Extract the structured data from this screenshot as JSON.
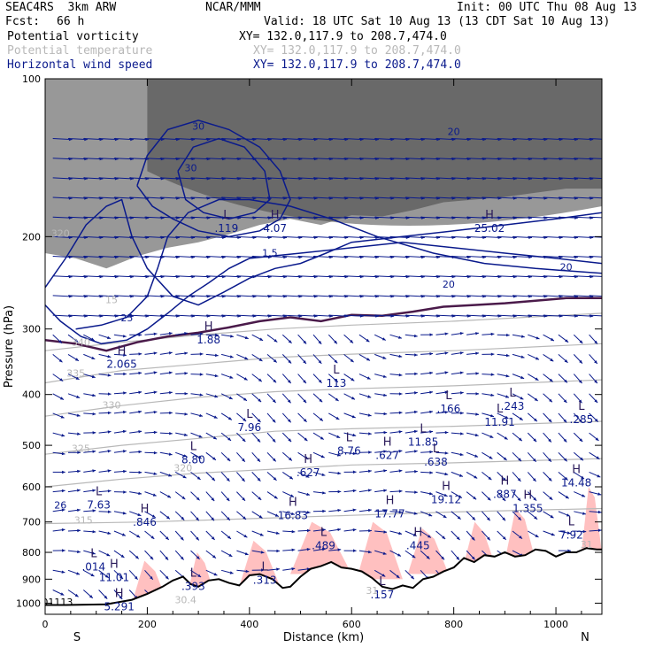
{
  "header": {
    "model": "SEAC4RS  3km ARW",
    "org": "NCAR/MMM",
    "init": "Init: 00 UTC Thu 08 Aug 13",
    "fcst_label": "Fcst:",
    "fcst_value": "66 h",
    "valid": "Valid: 18 UTC Sat 10 Aug 13 (13 CDT Sat 10 Aug 13)",
    "fields": [
      {
        "name": "Potential vorticity",
        "xy": "XY= 132.0,117.9 to 208.7,474.0",
        "color": "#000000"
      },
      {
        "name": "Potential temperature",
        "xy": "XY= 132.0,117.9 to 208.7,474.0",
        "color": "#b8b8b8"
      },
      {
        "name": "Horizontal wind speed",
        "xy": "XY= 132.0,117.9 to 208.7,474.0",
        "color": "#0a1a8c"
      }
    ]
  },
  "chart_data": {
    "type": "cross-section",
    "xlabel": "Distance (km)",
    "ylabel": "Pressure (hPa)",
    "xlim": [
      0,
      1090
    ],
    "ylim": [
      1050,
      100
    ],
    "y_scale": "log",
    "x_ticks": [
      0,
      200,
      400,
      600,
      800,
      1000
    ],
    "y_ticks": [
      100,
      200,
      300,
      400,
      500,
      600,
      700,
      800,
      900,
      1000
    ],
    "end_labels": {
      "left": "S",
      "right": "N"
    },
    "colors": {
      "terrain": "#000000",
      "pv_high": "#ffc0c0",
      "stratosphere": "#444444",
      "theta": "#b8b8b8",
      "wind": "#0a1a8c",
      "tropopause": "#4a1a4a"
    },
    "terrain_surface": [
      [
        0,
        1008
      ],
      [
        40,
        1008
      ],
      [
        120,
        1005
      ],
      [
        170,
        985
      ],
      [
        200,
        960
      ],
      [
        230,
        930
      ],
      [
        250,
        905
      ],
      [
        270,
        890
      ],
      [
        285,
        920
      ],
      [
        300,
        930
      ],
      [
        320,
        905
      ],
      [
        340,
        900
      ],
      [
        360,
        915
      ],
      [
        380,
        925
      ],
      [
        400,
        885
      ],
      [
        420,
        880
      ],
      [
        445,
        900
      ],
      [
        465,
        935
      ],
      [
        480,
        930
      ],
      [
        500,
        890
      ],
      [
        520,
        860
      ],
      [
        540,
        850
      ],
      [
        560,
        835
      ],
      [
        580,
        855
      ],
      [
        600,
        860
      ],
      [
        620,
        870
      ],
      [
        640,
        895
      ],
      [
        660,
        930
      ],
      [
        680,
        940
      ],
      [
        700,
        925
      ],
      [
        720,
        935
      ],
      [
        740,
        900
      ],
      [
        760,
        890
      ],
      [
        780,
        870
      ],
      [
        800,
        855
      ],
      [
        820,
        820
      ],
      [
        840,
        835
      ],
      [
        860,
        810
      ],
      [
        880,
        815
      ],
      [
        900,
        800
      ],
      [
        920,
        815
      ],
      [
        940,
        810
      ],
      [
        960,
        790
      ],
      [
        980,
        795
      ],
      [
        1000,
        815
      ],
      [
        1020,
        800
      ],
      [
        1040,
        800
      ],
      [
        1060,
        785
      ],
      [
        1080,
        790
      ],
      [
        1090,
        790
      ]
    ],
    "pv_high_regions": [
      {
        "x": [
          170,
          240
        ],
        "p": [
          1000,
          830
        ]
      },
      {
        "x": [
          280,
          330
        ],
        "p": [
          950,
          800
        ]
      },
      {
        "x": [
          380,
          460
        ],
        "p": [
          930,
          760
        ]
      },
      {
        "x": [
          480,
          600
        ],
        "p": [
          880,
          700
        ]
      },
      {
        "x": [
          610,
          700
        ],
        "p": [
          900,
          700
        ]
      },
      {
        "x": [
          710,
          790
        ],
        "p": [
          880,
          720
        ]
      },
      {
        "x": [
          820,
          880
        ],
        "p": [
          840,
          700
        ]
      },
      {
        "x": [
          900,
          960
        ],
        "p": [
          830,
          660
        ]
      },
      {
        "x": [
          1050,
          1090
        ],
        "p": [
          800,
          600
        ]
      }
    ],
    "tropopause": [
      [
        0,
        315
      ],
      [
        60,
        320
      ],
      [
        120,
        330
      ],
      [
        180,
        318
      ],
      [
        240,
        310
      ],
      [
        300,
        305
      ],
      [
        360,
        298
      ],
      [
        420,
        290
      ],
      [
        480,
        285
      ],
      [
        540,
        290
      ],
      [
        600,
        282
      ],
      [
        660,
        283
      ],
      [
        720,
        278
      ],
      [
        780,
        272
      ],
      [
        840,
        270
      ],
      [
        900,
        268
      ],
      [
        960,
        265
      ],
      [
        1020,
        262
      ],
      [
        1090,
        262
      ]
    ],
    "theta_contours": [
      {
        "label": "315",
        "points": [
          [
            0,
            705
          ],
          [
            200,
            700
          ],
          [
            400,
            690
          ],
          [
            600,
            680
          ],
          [
            800,
            670
          ],
          [
            1090,
            660
          ]
        ]
      },
      {
        "label": "320",
        "points": [
          [
            0,
            600
          ],
          [
            150,
            580
          ],
          [
            300,
            565
          ],
          [
            450,
            555
          ],
          [
            600,
            545
          ],
          [
            800,
            540
          ],
          [
            1090,
            530
          ]
        ]
      },
      {
        "label": "325",
        "points": [
          [
            0,
            520
          ],
          [
            150,
            500
          ],
          [
            300,
            485
          ],
          [
            450,
            470
          ],
          [
            600,
            465
          ],
          [
            800,
            460
          ],
          [
            1090,
            450
          ]
        ]
      },
      {
        "label": "330",
        "points": [
          [
            0,
            440
          ],
          [
            150,
            420
          ],
          [
            300,
            405
          ],
          [
            450,
            395
          ],
          [
            600,
            390
          ],
          [
            800,
            385
          ],
          [
            1090,
            375
          ]
        ]
      },
      {
        "label": "335",
        "points": [
          [
            0,
            380
          ],
          [
            150,
            360
          ],
          [
            300,
            350
          ],
          [
            450,
            340
          ],
          [
            600,
            335
          ],
          [
            800,
            330
          ],
          [
            1090,
            320
          ]
        ]
      },
      {
        "label": "340",
        "points": [
          [
            0,
            330
          ],
          [
            150,
            318
          ],
          [
            300,
            308
          ],
          [
            450,
            300
          ],
          [
            600,
            295
          ],
          [
            800,
            290
          ],
          [
            1090,
            280
          ]
        ]
      }
    ],
    "wind_contours": [
      {
        "label": "15",
        "points": [
          [
            0,
            250
          ],
          [
            40,
            220
          ],
          [
            80,
            190
          ],
          [
            120,
            175
          ],
          [
            150,
            170
          ],
          [
            170,
            200
          ],
          [
            200,
            230
          ],
          [
            250,
            260
          ],
          [
            300,
            270
          ],
          [
            350,
            255
          ],
          [
            400,
            240
          ],
          [
            450,
            230
          ],
          [
            500,
            225
          ],
          [
            550,
            215
          ],
          [
            600,
            205
          ],
          [
            700,
            200
          ],
          [
            800,
            195
          ],
          [
            900,
            190
          ],
          [
            1000,
            185
          ],
          [
            1090,
            180
          ]
        ]
      },
      {
        "label": "20",
        "points": [
          [
            0,
            270
          ],
          [
            30,
            290
          ],
          [
            70,
            310
          ],
          [
            110,
            320
          ],
          [
            160,
            315
          ],
          [
            200,
            300
          ],
          [
            240,
            280
          ],
          [
            280,
            260
          ],
          [
            320,
            245
          ],
          [
            360,
            230
          ],
          [
            400,
            220
          ],
          [
            500,
            215
          ],
          [
            600,
            210
          ],
          [
            700,
            205
          ],
          [
            800,
            210
          ],
          [
            900,
            215
          ],
          [
            1000,
            220
          ],
          [
            1090,
            225
          ]
        ]
      },
      {
        "label": "25",
        "points": [
          [
            60,
            300
          ],
          [
            110,
            295
          ],
          [
            160,
            285
          ],
          [
            200,
            260
          ],
          [
            220,
            230
          ],
          [
            240,
            200
          ],
          [
            280,
            180
          ],
          [
            340,
            170
          ],
          [
            400,
            170
          ],
          [
            480,
            175
          ],
          [
            560,
            185
          ],
          [
            650,
            200
          ],
          [
            760,
            215
          ],
          [
            860,
            225
          ],
          [
            960,
            230
          ],
          [
            1090,
            235
          ]
        ]
      },
      {
        "label": "30",
        "points": [
          [
            180,
            160
          ],
          [
            200,
            140
          ],
          [
            240,
            125
          ],
          [
            300,
            120
          ],
          [
            360,
            125
          ],
          [
            420,
            135
          ],
          [
            460,
            150
          ],
          [
            480,
            170
          ],
          [
            460,
            185
          ],
          [
            420,
            195
          ],
          [
            360,
            200
          ],
          [
            300,
            195
          ],
          [
            250,
            185
          ],
          [
            210,
            175
          ],
          [
            180,
            160
          ]
        ]
      },
      {
        "label": "40",
        "points": [
          [
            260,
            150
          ],
          [
            290,
            135
          ],
          [
            340,
            130
          ],
          [
            390,
            135
          ],
          [
            430,
            150
          ],
          [
            440,
            170
          ],
          [
            410,
            180
          ],
          [
            360,
            185
          ],
          [
            310,
            180
          ],
          [
            275,
            170
          ],
          [
            260,
            150
          ]
        ]
      }
    ],
    "extrema_labels": [
      {
        "type": "H",
        "value": "2.065",
        "x": 150,
        "p": 345
      },
      {
        "type": "H",
        "value": "1.88",
        "x": 320,
        "p": 310
      },
      {
        "type": "L",
        "value": ".119",
        "x": 355,
        "p": 190
      },
      {
        "type": "H",
        "value": "4.07",
        "x": 450,
        "p": 190
      },
      {
        "type": "H",
        "value": "25.02",
        "x": 870,
        "p": 190
      },
      {
        "type": "L",
        "value": "113",
        "x": 570,
        "p": 375
      },
      {
        "type": "L",
        "value": "7.96",
        "x": 400,
        "p": 455
      },
      {
        "type": "L",
        "value": "8.80",
        "x": 290,
        "p": 525
      },
      {
        "type": "L",
        "value": "8.76",
        "x": 595,
        "p": 505
      },
      {
        "type": "H",
        "value": ".627",
        "x": 515,
        "p": 555
      },
      {
        "type": "H",
        "value": ".627",
        "x": 670,
        "p": 515
      },
      {
        "type": "L",
        "value": "11.85",
        "x": 740,
        "p": 485
      },
      {
        "type": "L",
        "value": ".638",
        "x": 765,
        "p": 530
      },
      {
        "type": "L",
        "value": ".166",
        "x": 790,
        "p": 420
      },
      {
        "type": "L",
        "value": ".243",
        "x": 915,
        "p": 415
      },
      {
        "type": "L",
        "value": "11.91",
        "x": 890,
        "p": 445
      },
      {
        "type": "L",
        "value": ".285",
        "x": 1050,
        "p": 440
      },
      {
        "type": "H",
        "value": "14.48",
        "x": 1040,
        "p": 580
      },
      {
        "type": "L",
        "value": "7.63",
        "x": 105,
        "p": 640
      },
      {
        "type": "H",
        "value": ".846",
        "x": 195,
        "p": 690
      },
      {
        "type": "H",
        "value": "16.83",
        "x": 485,
        "p": 670
      },
      {
        "type": "H",
        "value": "17.77",
        "x": 675,
        "p": 665
      },
      {
        "type": "H",
        "value": "19.12",
        "x": 785,
        "p": 625
      },
      {
        "type": "H",
        "value": ".887",
        "x": 900,
        "p": 610
      },
      {
        "type": "H",
        "value": "1.355",
        "x": 945,
        "p": 650
      },
      {
        "type": "L",
        "value": "7.92",
        "x": 1030,
        "p": 730
      },
      {
        "type": "L",
        "value": ".489",
        "x": 545,
        "p": 765
      },
      {
        "type": "H",
        "value": ".445",
        "x": 730,
        "p": 765
      },
      {
        "type": "L",
        "value": ".014",
        "x": 95,
        "p": 840
      },
      {
        "type": "H",
        "value": "11.01",
        "x": 135,
        "p": 880
      },
      {
        "type": "L",
        "value": ".393",
        "x": 290,
        "p": 915
      },
      {
        "type": "H",
        "value": "5.291",
        "x": 145,
        "p": 1000
      },
      {
        "type": "L",
        "value": ".157",
        "x": 660,
        "p": 950
      },
      {
        "type": "L",
        "value": ".313",
        "x": 430,
        "p": 890
      }
    ],
    "contour_labels": [
      {
        "text": "30",
        "x": 300,
        "p": 125,
        "color": "#0a1a8c"
      },
      {
        "text": "30",
        "x": 285,
        "p": 150,
        "color": "#0a1a8c"
      },
      {
        "text": "20",
        "x": 800,
        "p": 128,
        "color": "#0a1a8c"
      },
      {
        "text": "20",
        "x": 790,
        "p": 250,
        "color": "#0a1a8c"
      },
      {
        "text": "20",
        "x": 1020,
        "p": 232,
        "color": "#0a1a8c"
      },
      {
        "text": "25",
        "x": 160,
        "p": 290,
        "color": "#0a1a8c"
      },
      {
        "text": "15",
        "x": 130,
        "p": 268,
        "color": "#b8b8b8"
      },
      {
        "text": "1.5",
        "x": 440,
        "p": 218,
        "color": "#0a1a8c"
      },
      {
        "text": "320",
        "x": 30,
        "p": 200,
        "color": "#b8b8b8"
      },
      {
        "text": "315",
        "x": 75,
        "p": 705,
        "color": "#b8b8b8"
      },
      {
        "text": "320",
        "x": 270,
        "p": 560,
        "color": "#b8b8b8"
      },
      {
        "text": "325",
        "x": 70,
        "p": 515,
        "color": "#b8b8b8"
      },
      {
        "text": "330",
        "x": 130,
        "p": 425,
        "color": "#b8b8b8"
      },
      {
        "text": "335",
        "x": 60,
        "p": 370,
        "color": "#b8b8b8"
      },
      {
        "text": "340",
        "x": 70,
        "p": 323,
        "color": "#b8b8b8"
      },
      {
        "text": "26",
        "x": 30,
        "p": 660,
        "color": "#0a1a8c"
      },
      {
        "text": "31",
        "x": 1060,
        "p": 785,
        "color": "#b8b8b8"
      },
      {
        "text": "31",
        "x": 640,
        "p": 960,
        "color": "#b8b8b8"
      },
      {
        "text": "30.4",
        "x": 275,
        "p": 1000,
        "color": "#b8b8b8"
      },
      {
        "text": ".001113",
        "x": 15,
        "p": 1010,
        "color": "#000000"
      }
    ]
  }
}
